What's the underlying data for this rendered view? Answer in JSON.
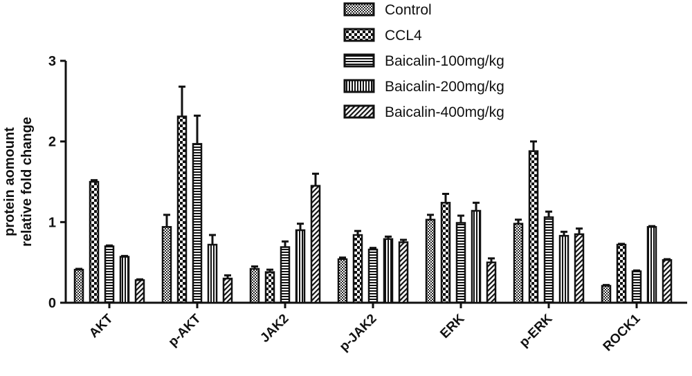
{
  "chart_data": {
    "type": "bar",
    "title": "",
    "xlabel": "",
    "ylabel_lines": [
      "protein aomount",
      "relative fold change"
    ],
    "ylim": [
      0,
      3
    ],
    "yticks": [
      "0",
      "1",
      "2",
      "3"
    ],
    "ytick_values": [
      0,
      1,
      2,
      3
    ],
    "categories": [
      "AKT",
      "p-AKT",
      "JAK2",
      "p-JAK2",
      "ERK",
      "p-ERK",
      "ROCK1"
    ],
    "series": [
      {
        "name": "Control",
        "pattern": "checker-fine",
        "values": [
          0.41,
          0.94,
          0.42,
          0.54,
          1.03,
          0.98,
          0.21
        ],
        "errors": [
          0.01,
          0.15,
          0.03,
          0.02,
          0.06,
          0.05,
          0.01
        ]
      },
      {
        "name": "CCL4",
        "pattern": "checker-coarse",
        "values": [
          1.5,
          2.31,
          0.38,
          0.84,
          1.24,
          1.88,
          0.72
        ],
        "errors": [
          0.02,
          0.37,
          0.03,
          0.05,
          0.11,
          0.12,
          0.01
        ]
      },
      {
        "name": "Baicalin-100mg/kg",
        "pattern": "hlines",
        "values": [
          0.7,
          1.97,
          0.69,
          0.66,
          0.99,
          1.06,
          0.39
        ],
        "errors": [
          0.01,
          0.35,
          0.07,
          0.02,
          0.09,
          0.07,
          0.01
        ]
      },
      {
        "name": "Baicalin-200mg/kg",
        "pattern": "vlines",
        "values": [
          0.57,
          0.72,
          0.9,
          0.79,
          1.14,
          0.83,
          0.94
        ],
        "errors": [
          0.01,
          0.12,
          0.08,
          0.03,
          0.1,
          0.05,
          0.01
        ]
      },
      {
        "name": "Baicalin-400mg/kg",
        "pattern": "diagonal",
        "values": [
          0.28,
          0.3,
          1.45,
          0.75,
          0.5,
          0.85,
          0.53
        ],
        "errors": [
          0.01,
          0.04,
          0.15,
          0.03,
          0.05,
          0.07,
          0.01
        ]
      }
    ],
    "legend_position": "top-right",
    "grid": false
  }
}
